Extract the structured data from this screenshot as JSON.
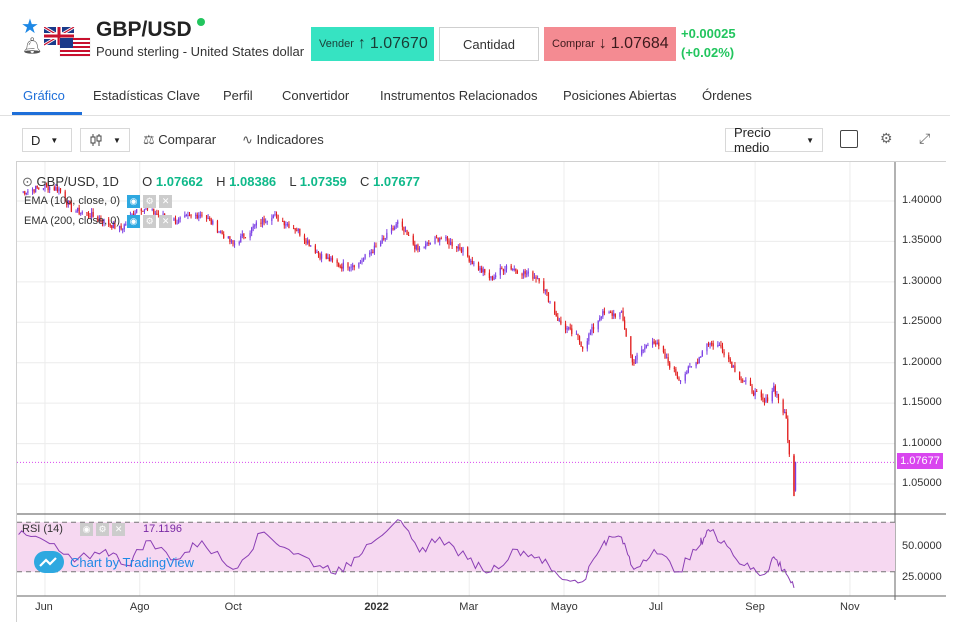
{
  "header": {
    "symbol": "GBP/USD",
    "pair_name": "Pound sterling - United States dollar",
    "sell_label": "Vender",
    "sell_price": "1.07670",
    "quantity_label": "Cantidad",
    "buy_label": "Comprar",
    "buy_price": "1.07684",
    "change_abs": "+0.00025",
    "change_pct": "(+0.02%)",
    "colors": {
      "sell": "#36e3c2",
      "buy": "#f48b92",
      "positive": "#22c55e"
    }
  },
  "tabs": [
    "Gráfico",
    "Estadísticas Clave",
    "Perfil",
    "Convertidor",
    "Instrumentos Relacionados",
    "Posiciones Abiertas",
    "Órdenes"
  ],
  "toolbar": {
    "interval": "D",
    "compare": "Comparar",
    "indicators": "Indicadores",
    "price_mode": "Precio medio",
    "icons": [
      "candles-icon",
      "compare-icon",
      "indicators-icon",
      "gear-icon",
      "fullscreen-icon"
    ]
  },
  "chart_data": {
    "type": "candlestick",
    "legend": {
      "title": "GBP/USD, 1D",
      "o_label": "O",
      "o": "1.07662",
      "h_label": "H",
      "h": "1.08386",
      "l_label": "L",
      "l": "1.07359",
      "c_label": "C",
      "c": "1.07677"
    },
    "indicators": [
      "EMA (100, close, 0)",
      "EMA (200, close, 0)"
    ],
    "last_price_tag": "1.07677",
    "y_ticks": [
      "1.40000",
      "1.35000",
      "1.30000",
      "1.25000",
      "1.20000",
      "1.15000",
      "1.10000",
      "1.05000"
    ],
    "y_tick_values": [
      1.4,
      1.35,
      1.3,
      1.25,
      1.2,
      1.15,
      1.1,
      1.05
    ],
    "x_ticks": [
      "Jun",
      "Ago",
      "Oct",
      "2022",
      "Mar",
      "Mayo",
      "Jul",
      "Sep",
      "Nov"
    ],
    "x_tick_dates": [
      "2021-06-01",
      "2021-08-01",
      "2021-10-01",
      "2022-01-01",
      "2022-03-01",
      "2022-05-01",
      "2022-07-01",
      "2022-09-01",
      "2022-11-01"
    ],
    "price_path": [
      [
        "2021-05-15",
        1.41
      ],
      [
        "2021-06-01",
        1.418
      ],
      [
        "2021-06-10",
        1.415
      ],
      [
        "2021-06-18",
        1.39
      ],
      [
        "2021-07-01",
        1.382
      ],
      [
        "2021-07-20",
        1.365
      ],
      [
        "2021-07-31",
        1.393
      ],
      [
        "2021-08-15",
        1.382
      ],
      [
        "2021-08-25",
        1.375
      ],
      [
        "2021-09-10",
        1.385
      ],
      [
        "2021-09-30",
        1.346
      ],
      [
        "2021-10-15",
        1.37
      ],
      [
        "2021-10-25",
        1.383
      ],
      [
        "2021-11-10",
        1.365
      ],
      [
        "2021-11-25",
        1.333
      ],
      [
        "2021-12-08",
        1.32
      ],
      [
        "2021-12-20",
        1.323
      ],
      [
        "2022-01-05",
        1.352
      ],
      [
        "2022-01-14",
        1.372
      ],
      [
        "2022-01-27",
        1.339
      ],
      [
        "2022-02-10",
        1.355
      ],
      [
        "2022-02-24",
        1.341
      ],
      [
        "2022-03-05",
        1.32
      ],
      [
        "2022-03-15",
        1.304
      ],
      [
        "2022-03-25",
        1.32
      ],
      [
        "2022-04-05",
        1.311
      ],
      [
        "2022-04-15",
        1.305
      ],
      [
        "2022-04-28",
        1.25
      ],
      [
        "2022-05-10",
        1.23
      ],
      [
        "2022-05-13",
        1.22
      ],
      [
        "2022-05-25",
        1.26
      ],
      [
        "2022-06-07",
        1.26
      ],
      [
        "2022-06-14",
        1.2
      ],
      [
        "2022-06-27",
        1.23
      ],
      [
        "2022-07-14",
        1.18
      ],
      [
        "2022-07-25",
        1.2
      ],
      [
        "2022-08-01",
        1.225
      ],
      [
        "2022-08-10",
        1.22
      ],
      [
        "2022-08-23",
        1.18
      ],
      [
        "2022-09-07",
        1.15
      ],
      [
        "2022-09-13",
        1.17
      ],
      [
        "2022-09-21",
        1.13
      ],
      [
        "2022-09-23",
        1.085
      ],
      [
        "2022-09-26",
        1.04
      ],
      [
        "2022-09-27",
        1.077
      ]
    ],
    "rsi": {
      "label": "RSI (14)",
      "value": "17.1196",
      "y_ticks": [
        "50.0000",
        "25.0000"
      ],
      "y_tick_values": [
        50,
        25
      ],
      "upper_band": 70,
      "lower_band": 30,
      "series": [
        [
          "2021-05-15",
          60
        ],
        [
          "2021-06-01",
          55
        ],
        [
          "2021-06-20",
          38
        ],
        [
          "2021-07-10",
          48
        ],
        [
          "2021-07-25",
          35
        ],
        [
          "2021-08-05",
          55
        ],
        [
          "2021-08-25",
          40
        ],
        [
          "2021-09-10",
          55
        ],
        [
          "2021-09-30",
          32
        ],
        [
          "2021-10-20",
          62
        ],
        [
          "2021-11-05",
          48
        ],
        [
          "2021-11-25",
          35
        ],
        [
          "2021-12-10",
          30
        ],
        [
          "2021-12-25",
          52
        ],
        [
          "2022-01-14",
          72
        ],
        [
          "2022-01-28",
          46
        ],
        [
          "2022-02-10",
          58
        ],
        [
          "2022-02-28",
          40
        ],
        [
          "2022-03-15",
          30
        ],
        [
          "2022-04-01",
          48
        ],
        [
          "2022-04-15",
          42
        ],
        [
          "2022-04-28",
          26
        ],
        [
          "2022-05-13",
          22
        ],
        [
          "2022-05-27",
          55
        ],
        [
          "2022-06-07",
          58
        ],
        [
          "2022-06-15",
          32
        ],
        [
          "2022-06-28",
          48
        ],
        [
          "2022-07-14",
          30
        ],
        [
          "2022-07-28",
          52
        ],
        [
          "2022-08-02",
          64
        ],
        [
          "2022-08-12",
          55
        ],
        [
          "2022-08-25",
          35
        ],
        [
          "2022-09-07",
          28
        ],
        [
          "2022-09-13",
          42
        ],
        [
          "2022-09-20",
          32
        ],
        [
          "2022-09-26",
          17
        ]
      ]
    },
    "colors": {
      "up": "#7b3fe4",
      "down": "#e11d1d",
      "rsi_line": "#8b3fb5",
      "rsi_band": "#f6d8f1",
      "last_price": "#d946ef"
    },
    "grid": true,
    "watermark": "Chart by TradingView"
  }
}
